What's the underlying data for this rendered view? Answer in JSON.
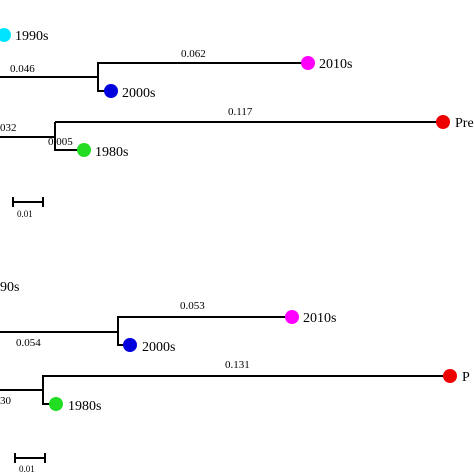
{
  "trees": [
    {
      "leaves": [
        "1990s",
        "2010s",
        "2000s",
        "Pre",
        "1980s"
      ],
      "branch_labels": [
        "0.046",
        "0.062",
        "032",
        "0.117",
        "0.005"
      ],
      "scale_label": "0.01"
    },
    {
      "leaves": [
        "90s",
        "2010s",
        "2000s",
        "P",
        "1980s"
      ],
      "branch_labels": [
        "0.054",
        "0.053",
        "30",
        "0.131"
      ],
      "scale_label": "0.01"
    }
  ]
}
